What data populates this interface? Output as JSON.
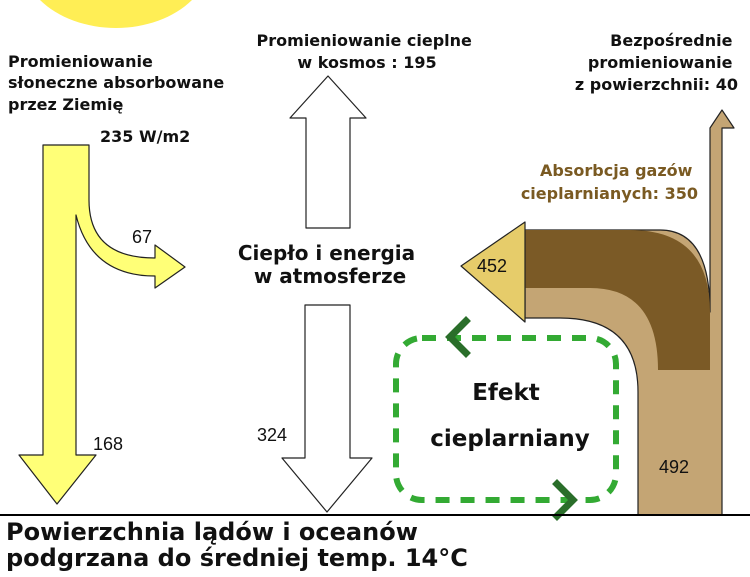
{
  "colors": {
    "sun": "#ffee55",
    "solar_arrow": "#ffff77",
    "solar_outline": "#222222",
    "gas_dark": "#7b5a26",
    "gas_light": "#c4a574",
    "arrow_452": "#e6cc6a",
    "greenhouse_dash": "#33aa33",
    "greenhouse_chevron": "#2a6e2a",
    "surface_line": "#000000"
  },
  "labels": {
    "solar_absorbed": [
      "Promieniowanie",
      "słoneczne absorbowane",
      "przez Ziemię"
    ],
    "solar_value": "235 W/m2",
    "thermal_space": [
      "Promieniowanie cieplne",
      "w kosmos : 195"
    ],
    "direct_surface": [
      "Bezpośrednie",
      "promieniowanie",
      "z powierzchnii: 40"
    ],
    "gas_absorption": [
      "Absorbcja gazów",
      "cieplarnianych: 350"
    ],
    "atmosphere_heat": [
      "Ciepło i energia",
      "w atmosferze"
    ],
    "greenhouse_effect": [
      "Efekt",
      "cieplarniany"
    ],
    "surface": [
      "Powierzchnia lądów i oceanów",
      "podgrzana do średniej temp. 14°C"
    ]
  },
  "values": {
    "solar_to_atmosphere": "67",
    "solar_to_surface": "168",
    "atmosphere_to_surface": "324",
    "back_to_atmosphere": "452",
    "surface_emission": "492"
  }
}
